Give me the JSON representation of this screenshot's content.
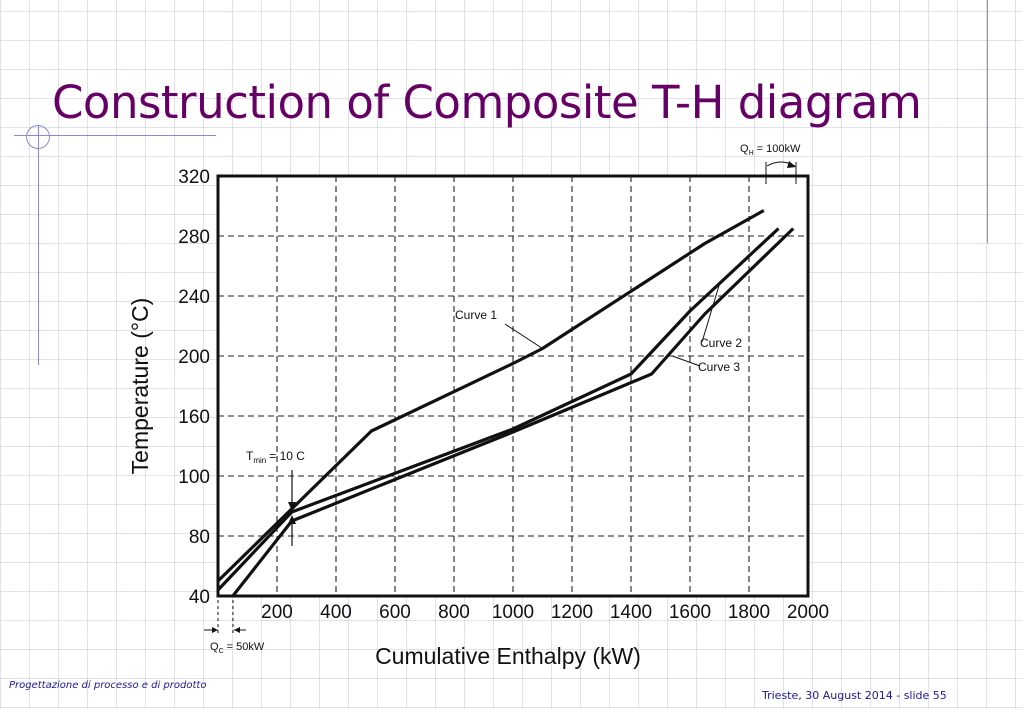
{
  "slide": {
    "title": "Construction of Composite T-H diagram",
    "footer_left": "Progettazione di processo e di prodotto",
    "footer_right": "Trieste,  30 August 2014 - slide 55",
    "title_color": "#660066",
    "footer_color": "#1a1a99"
  },
  "chart_data": {
    "type": "line",
    "xlabel": "Cumulative Enthalpy (kW)",
    "ylabel": "Temperature (°C)",
    "xlim": [
      0,
      2000
    ],
    "x_ticks": [
      200,
      400,
      600,
      800,
      1000,
      1200,
      1400,
      1600,
      1800,
      2000
    ],
    "y_ticks": [
      {
        "label": "40",
        "value": 40
      },
      {
        "label": "80",
        "value": 80
      },
      {
        "label": "100",
        "value": 100
      },
      {
        "label": "160",
        "value": 160
      },
      {
        "label": "200",
        "value": 200
      },
      {
        "label": "240",
        "value": 240
      },
      {
        "label": "280",
        "value": 280
      },
      {
        "label": "320",
        "value": 320
      }
    ],
    "grid": true,
    "series": [
      {
        "name": "Curve 1",
        "points": [
          [
            0,
            50
          ],
          [
            520,
            145
          ],
          [
            1000,
            195
          ],
          [
            1100,
            205
          ],
          [
            1650,
            275
          ],
          [
            1850,
            297
          ]
        ]
      },
      {
        "name": "Curve 2",
        "points": [
          [
            0,
            44
          ],
          [
            250,
            88
          ],
          [
            1000,
            147
          ],
          [
            1400,
            188
          ],
          [
            1600,
            230
          ],
          [
            1900,
            285
          ]
        ]
      },
      {
        "name": "Curve 3",
        "points": [
          [
            50,
            40
          ],
          [
            250,
            85
          ],
          [
            1000,
            144
          ],
          [
            1470,
            188
          ],
          [
            1650,
            228
          ],
          [
            1950,
            285
          ]
        ]
      }
    ],
    "annotations": {
      "tmin_label": "T",
      "tmin_sub": "min",
      "tmin_value": "= 10 C",
      "qh_label": "Q",
      "qh_sub": "H",
      "qh_value": "= 100kW",
      "qc_label": "Q",
      "qc_sub": "C",
      "qc_value": "= 50kW"
    }
  }
}
